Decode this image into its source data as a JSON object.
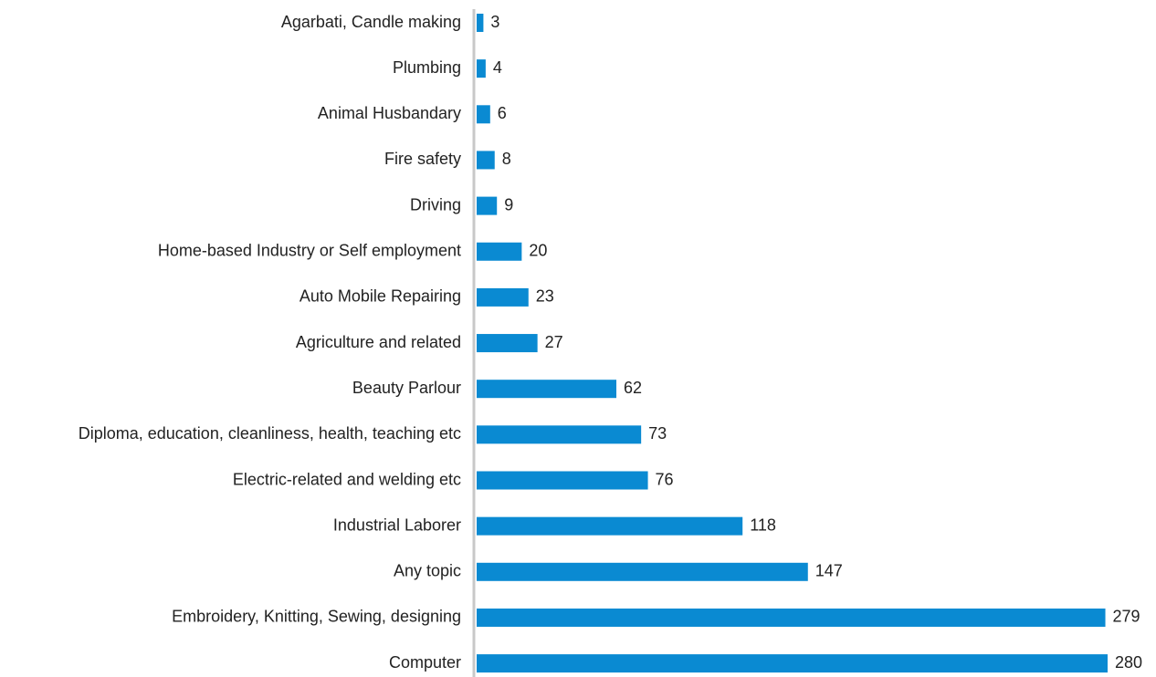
{
  "chart_data": {
    "type": "bar",
    "orientation": "horizontal",
    "categories": [
      "Agarbati, Candle making",
      "Plumbing",
      "Animal Husbandary",
      "Fire safety",
      "Driving",
      "Home-based Industry or Self employment",
      "Auto Mobile Repairing",
      "Agriculture and related",
      "Beauty Parlour",
      "Diploma, education, cleanliness, health, teaching etc",
      "Electric-related and welding etc",
      "Industrial Laborer",
      "Any topic",
      "Embroidery, Knitting, Sewing, designing",
      "Computer"
    ],
    "values": [
      3,
      4,
      6,
      8,
      9,
      20,
      23,
      27,
      62,
      73,
      76,
      118,
      147,
      279,
      280
    ],
    "color": "#0a8ad2"
  }
}
